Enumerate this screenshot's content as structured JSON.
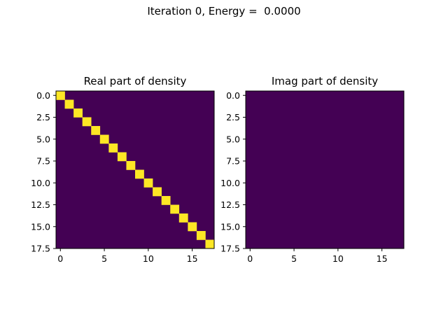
{
  "figure": {
    "suptitle": "Iteration 0, Energy =  0.0000"
  },
  "chart_data": [
    {
      "type": "heatmap",
      "title": "Real part of density",
      "xlabel": "",
      "ylabel": "",
      "grid": false,
      "size": 18,
      "xlim": [
        -0.5,
        17.5
      ],
      "ylim": [
        17.5,
        -0.5
      ],
      "xticks": [
        0,
        5,
        10,
        15
      ],
      "xtick_labels": [
        "0",
        "5",
        "10",
        "15"
      ],
      "yticks": [
        0.0,
        2.5,
        5.0,
        7.5,
        10.0,
        12.5,
        15.0,
        17.5
      ],
      "ytick_labels": [
        "0.0",
        "2.5",
        "5.0",
        "7.5",
        "10.0",
        "12.5",
        "15.0",
        "17.5"
      ],
      "values_description_is_identity": true,
      "diagonal_value": 1,
      "offdiagonal_value": 0,
      "colormap": {
        "low": "#440154",
        "high": "#fde725"
      }
    },
    {
      "type": "heatmap",
      "title": "Imag part of density",
      "xlabel": "",
      "ylabel": "",
      "grid": false,
      "size": 18,
      "xlim": [
        -0.5,
        17.5
      ],
      "ylim": [
        17.5,
        -0.5
      ],
      "xticks": [
        0,
        5,
        10,
        15
      ],
      "xtick_labels": [
        "0",
        "5",
        "10",
        "15"
      ],
      "yticks": [
        0.0,
        2.5,
        5.0,
        7.5,
        10.0,
        12.5,
        15.0,
        17.5
      ],
      "ytick_labels": [
        "0.0",
        "2.5",
        "5.0",
        "7.5",
        "10.0",
        "12.5",
        "15.0",
        "17.5"
      ],
      "values_description_is_identity": false,
      "diagonal_value": 0,
      "offdiagonal_value": 0,
      "colormap": {
        "low": "#440154",
        "high": "#fde725"
      }
    }
  ]
}
